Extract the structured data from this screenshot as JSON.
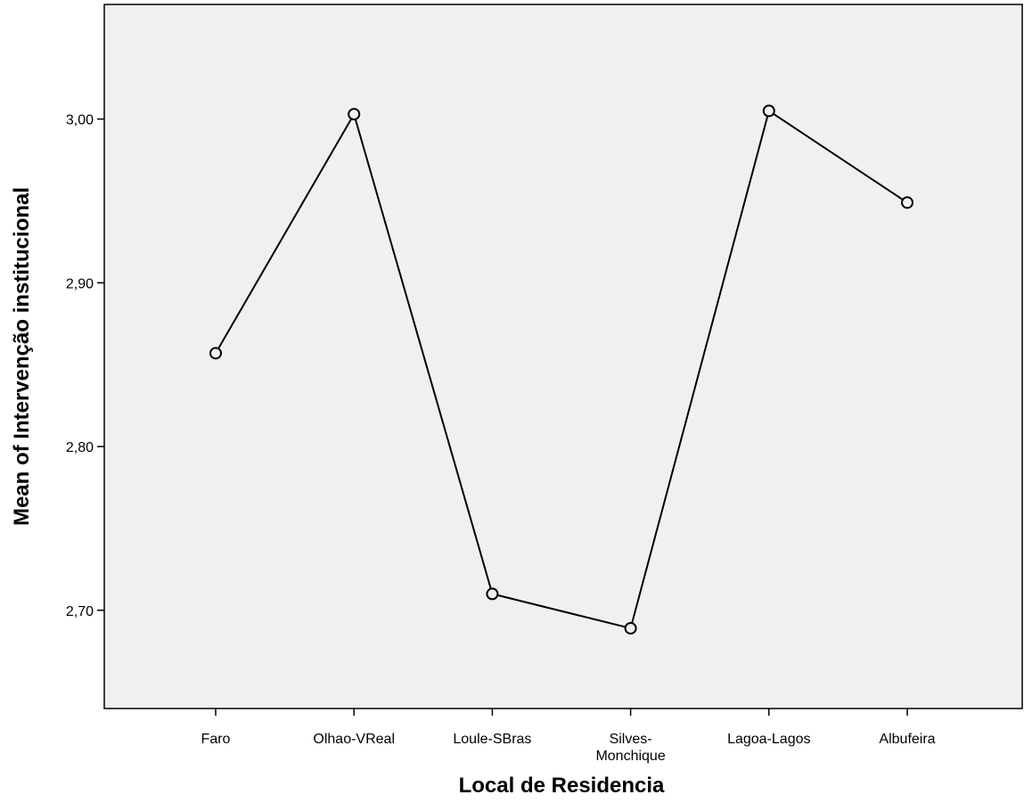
{
  "chart_data": {
    "type": "line",
    "title": "",
    "xlabel": "Local de Residencia",
    "ylabel": "Mean of Intervenção institucional",
    "categories": [
      "Faro",
      "Olhao-VReal",
      "Loule-SBras",
      "Silves-Monchique",
      "Lagoa-Lagos",
      "Albufeira"
    ],
    "category_labels": [
      [
        "Faro"
      ],
      [
        "Olhao-VReal"
      ],
      [
        "Loule-SBras"
      ],
      [
        "Silves-",
        "Monchique"
      ],
      [
        "Lagoa-Lagos"
      ],
      [
        "Albufeira"
      ]
    ],
    "series": [
      {
        "values": [
          2.857,
          3.003,
          2.71,
          2.689,
          3.005,
          2.949
        ]
      }
    ],
    "ylim": [
      2.64,
      3.07
    ],
    "yticks": [
      2.7,
      2.8,
      2.9,
      3.0
    ],
    "ytick_labels": [
      "2,70",
      "2,80",
      "2,90",
      "3,00"
    ],
    "grid": false,
    "legend": "none",
    "marker": "open-circle",
    "colors": {
      "plot_background": "#f0f0f0",
      "line": "#000000",
      "marker_fill": "#f0f0f0",
      "axis": "#000000"
    }
  }
}
